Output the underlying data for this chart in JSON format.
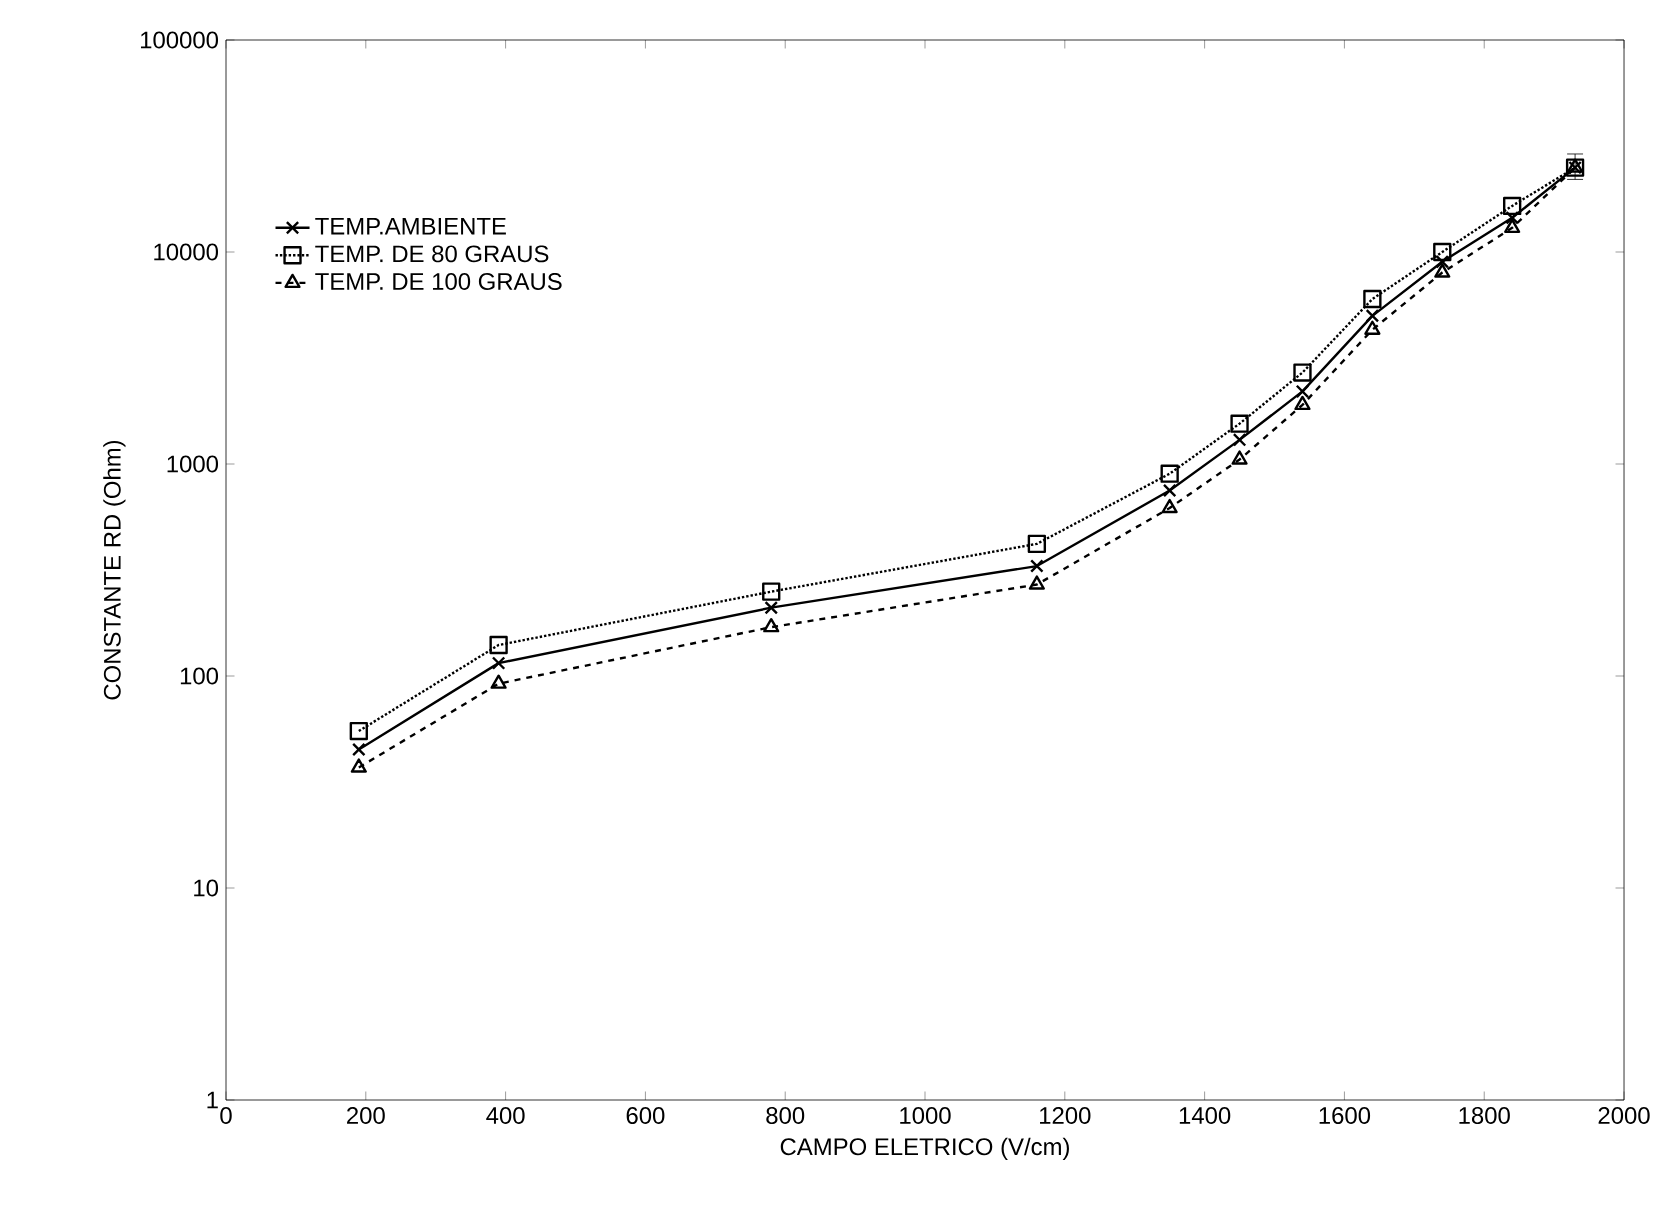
{
  "chart_data": {
    "type": "line",
    "xlabel": "CAMPO ELETRICO (V/cm)",
    "ylabel": "CONSTANTE RD (Ohm)",
    "x": [
      190,
      390,
      780,
      1160,
      1350,
      1450,
      1540,
      1640,
      1740,
      1840,
      1930
    ],
    "series": [
      {
        "name": "TEMP.AMBIENTE",
        "color": "#000000",
        "marker": "cross",
        "line_style": "solid",
        "values": [
          45,
          115,
          210,
          330,
          750,
          1300,
          2200,
          5000,
          9000,
          14500,
          25000
        ]
      },
      {
        "name": "TEMP. DE 80 GRAUS",
        "color": "#000000",
        "marker": "square",
        "line_style": "dotted",
        "values": [
          55,
          140,
          250,
          420,
          900,
          1550,
          2700,
          6000,
          10000,
          16500,
          25000
        ]
      },
      {
        "name": "TEMP. DE 100 GRAUS",
        "color": "#000000",
        "marker": "triangle",
        "line_style": "dashed",
        "values": [
          37,
          92,
          170,
          270,
          620,
          1050,
          1900,
          4300,
          8000,
          13000,
          25000
        ],
        "errors": [
          null,
          null,
          null,
          null,
          null,
          null,
          null,
          null,
          null,
          null,
          [
            22000,
            29000
          ]
        ]
      }
    ],
    "log": "y",
    "xlim": [
      0,
      2000
    ],
    "ylim": [
      1,
      100000
    ],
    "xticks": [
      0,
      200,
      400,
      600,
      800,
      1000,
      1200,
      1400,
      1600,
      1800,
      2000
    ],
    "yticks": [
      1,
      10,
      100,
      1000,
      10000,
      100000
    ],
    "legend": "top left",
    "grid": false
  }
}
